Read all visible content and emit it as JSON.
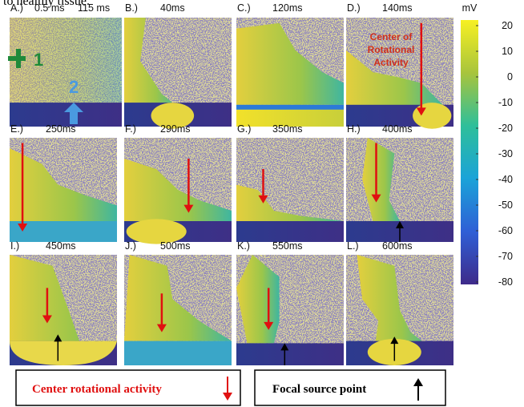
{
  "header_fragment": "to healthy tissue.",
  "panels": [
    {
      "label": "A.)",
      "time": "0.5 ms",
      "time2": "115 ms"
    },
    {
      "label": "B.)",
      "time": "40ms"
    },
    {
      "label": "C.)",
      "time": "120ms"
    },
    {
      "label": "D.)",
      "time": "140ms"
    },
    {
      "label": "E.)",
      "time": "250ms"
    },
    {
      "label": "F.)",
      "time": "290ms"
    },
    {
      "label": "G.)",
      "time": "350ms"
    },
    {
      "label": "H.)",
      "time": "400ms"
    },
    {
      "label": "I.)",
      "time": "450ms"
    },
    {
      "label": "J.)",
      "time": "500ms"
    },
    {
      "label": "K.)",
      "time": "550ms"
    },
    {
      "label": "L.)",
      "time": "600ms"
    }
  ],
  "annotations": {
    "marker1": "1",
    "marker2": "2",
    "center_lines": [
      "Center of",
      "Rotational",
      "Activity"
    ]
  },
  "colorbar": {
    "unit": "mV",
    "ticks": [
      "20",
      "10",
      "0",
      "-10",
      "-20",
      "-30",
      "-40",
      "-50",
      "-60",
      "-70",
      "-80"
    ]
  },
  "legend": [
    "Center rotational activity",
    "Focal source point"
  ]
}
